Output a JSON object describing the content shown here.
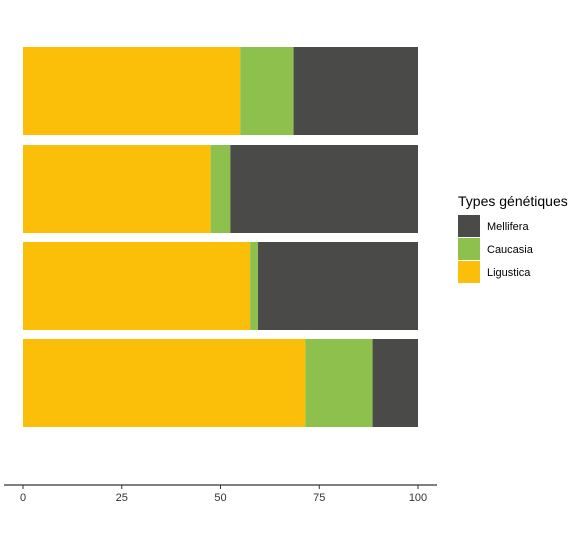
{
  "chart_data": {
    "type": "bar",
    "orientation": "horizontal",
    "stacked": true,
    "title": "",
    "xlabel": "",
    "ylabel": "",
    "xlim": [
      0,
      100
    ],
    "x_ticks": [
      "0",
      "25",
      "50",
      "75",
      "100"
    ],
    "grid": false,
    "legend": {
      "title": "Types génétiques",
      "placement": "right"
    },
    "categories": [
      "",
      "",
      "",
      ""
    ],
    "series": [
      {
        "name": "Ligustica",
        "color": "#FBBF0A",
        "values": [
          55,
          47.5,
          57.5,
          71.5
        ]
      },
      {
        "name": "Caucasia",
        "color": "#8DC04C",
        "values": [
          13.5,
          5,
          2,
          17
        ]
      },
      {
        "name": "Mellifera",
        "color": "#4A4A48",
        "values": [
          31.5,
          47.5,
          40.5,
          11.5
        ]
      }
    ],
    "legend_order": [
      "Mellifera",
      "Caucasia",
      "Ligustica"
    ]
  }
}
